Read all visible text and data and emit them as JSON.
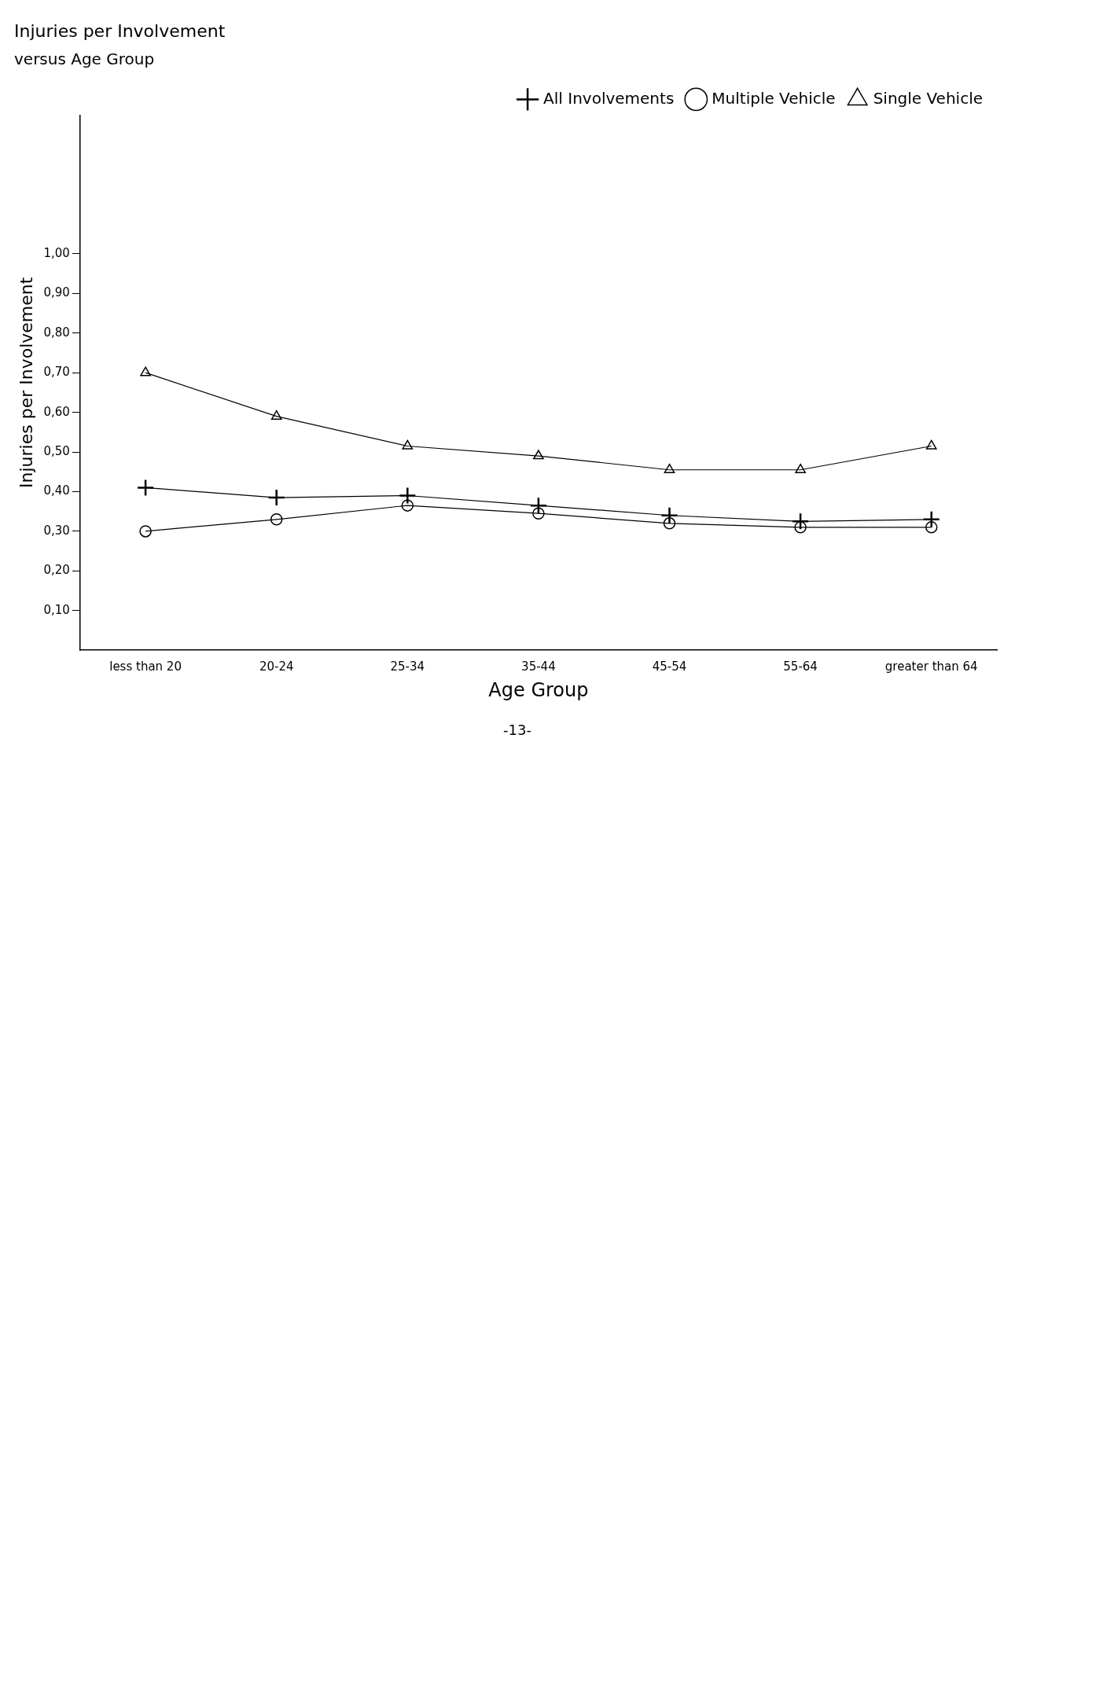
{
  "chart_data": {
    "type": "line",
    "title": "Injuries per Involvement",
    "subtitle": "versus Age Group",
    "xlabel": "Age Group",
    "ylabel": "Injuries per Involvement",
    "categories": [
      "less than 20",
      "20-24",
      "25-34",
      "35-44",
      "45-54",
      "55-64",
      "greater than 64"
    ],
    "series": [
      {
        "name": "All Involvements",
        "color": "#000000",
        "marker": "cross",
        "values": [
          0.41,
          0.385,
          0.39,
          0.365,
          0.34,
          0.325,
          0.33
        ]
      },
      {
        "name": "Multiple Vehicle",
        "color": "#000000",
        "marker": "circle",
        "values": [
          0.3,
          0.33,
          0.365,
          0.345,
          0.32,
          0.31,
          0.31
        ]
      },
      {
        "name": "Single Vehicle",
        "color": "#000000",
        "marker": "triangle",
        "values": [
          0.7,
          0.59,
          0.515,
          0.49,
          0.455,
          0.455,
          0.515
        ]
      }
    ],
    "ylim": [
      0,
      1.35
    ],
    "yticks": [
      {
        "value": 0.1,
        "label": "0,10"
      },
      {
        "value": 0.2,
        "label": "0,20"
      },
      {
        "value": 0.3,
        "label": "0,30"
      },
      {
        "value": 0.4,
        "label": "0,40"
      },
      {
        "value": 0.5,
        "label": "0,50"
      },
      {
        "value": 0.6,
        "label": "0,60"
      },
      {
        "value": 0.7,
        "label": "0,70"
      },
      {
        "value": 0.8,
        "label": "0,80"
      },
      {
        "value": 0.9,
        "label": "0,90"
      },
      {
        "value": 1.0,
        "label": "1,00"
      }
    ],
    "grid": false,
    "legend": "top right",
    "line_style": "solid",
    "annotations": [
      "-13-"
    ]
  }
}
